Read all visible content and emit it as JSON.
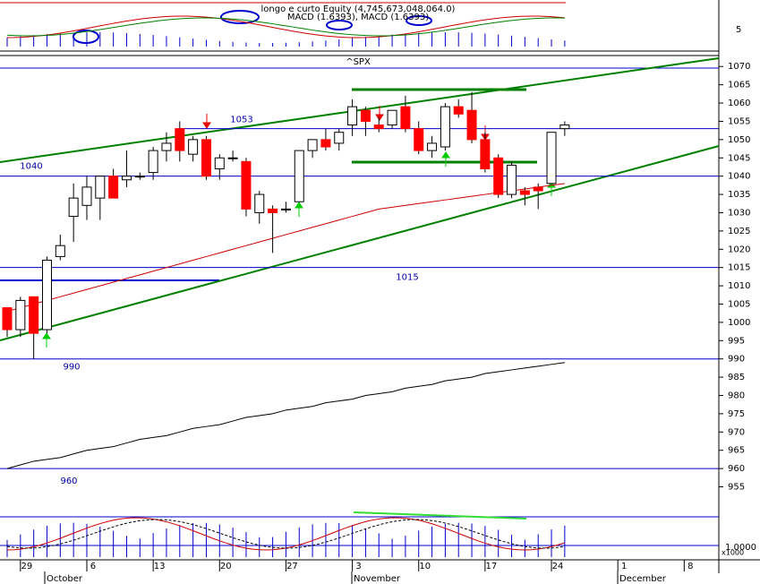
{
  "chart_data": {
    "type": "candlestick",
    "title": "longo e curto Equity (4,745,673,048,064.0)",
    "subtitle": "MACD (1.6393), MACD (1.6393)",
    "symbol": "^SPX",
    "categories": [
      null,
      "29",
      null,
      null,
      null,
      null,
      "6",
      null,
      null,
      null,
      null,
      "13",
      null,
      null,
      null,
      null,
      "20",
      null,
      null,
      null,
      null,
      "27",
      null,
      null,
      null,
      null,
      "3",
      null,
      null,
      null,
      null,
      "10",
      null,
      null,
      null,
      null,
      "17",
      null,
      null,
      null,
      null,
      "24",
      null,
      null,
      null,
      null,
      "1",
      null,
      null,
      null,
      null,
      "8",
      null,
      null
    ],
    "months": [
      "October",
      "November",
      "December"
    ],
    "open": [
      1004,
      998,
      1007,
      998,
      1018,
      1029,
      1032,
      1034,
      1040,
      1039,
      1040,
      1041,
      1047,
      1053,
      1046,
      1050,
      1042,
      1045,
      1044,
      1030,
      1031,
      1031,
      1033,
      1047,
      1050,
      1049,
      1054,
      1058,
      1054,
      1054,
      1059,
      1053,
      1047,
      1048,
      1059,
      1058,
      1050,
      1045,
      1035,
      1036,
      1037,
      1038,
      1053,
      null,
      null,
      null,
      null,
      null,
      null,
      null,
      null,
      null,
      null,
      null
    ],
    "high": [
      1004,
      1007,
      1007,
      1018,
      1024,
      1038,
      1040,
      1040,
      1042,
      1047,
      1041,
      1048,
      1052,
      1055,
      1051,
      1051,
      1046,
      1047,
      1045,
      1036,
      1032,
      1033,
      1047,
      1050,
      1053,
      1053,
      1061,
      1059,
      1056,
      1058,
      1062,
      1055,
      1051,
      1060,
      1061,
      1063,
      1052,
      1046,
      1044,
      1037,
      1038,
      1052,
      1055,
      null,
      null,
      null,
      null,
      null,
      null,
      null,
      null,
      null,
      null,
      null
    ],
    "low": [
      996,
      996,
      990,
      997,
      1017,
      1022,
      1028,
      1028,
      1035,
      1037,
      1039,
      1039,
      1044,
      1044,
      1044,
      1039,
      1039,
      1044,
      1029,
      1027,
      1019,
      1030,
      1033,
      1045,
      1047,
      1047,
      1051,
      1051,
      1052,
      1053,
      1052,
      1046,
      1045,
      1047,
      1056,
      1049,
      1041,
      1034,
      1034,
      1032,
      1031,
      1038,
      1051,
      null,
      null,
      null,
      null,
      null,
      null,
      null,
      null,
      null,
      null,
      null
    ],
    "close": [
      998,
      1006,
      997,
      1017,
      1021,
      1034,
      1037,
      1040,
      1034,
      1040,
      1040,
      1047,
      1049,
      1047,
      1050,
      1040,
      1045,
      1045,
      1031,
      1035,
      1030,
      1031,
      1047,
      1050,
      1048,
      1052,
      1059,
      1055,
      1053,
      1058,
      1053,
      1047,
      1049,
      1059,
      1057,
      1050,
      1042,
      1035,
      1043,
      1035,
      1036,
      1052,
      1054,
      null,
      null,
      null,
      null,
      null,
      null,
      null,
      null,
      null,
      null,
      null
    ],
    "up_color": "#ffffff",
    "down_color": "#ff0000",
    "series": [
      {
        "color": "#cc0000",
        "values": [
          1003,
          1004,
          1005,
          1006,
          1007,
          1008,
          1009,
          1010,
          1011,
          1012,
          1013,
          1014,
          1015,
          1016,
          1017,
          1018,
          1019,
          1020,
          1021,
          1022,
          1023,
          1024,
          1025,
          1026,
          1027,
          1028,
          1029,
          1030,
          1031,
          1031.5,
          1032,
          1032.5,
          1033,
          1033.5,
          1034,
          1034.5,
          1035,
          1035.5,
          1036,
          1036.5,
          1037,
          1037.5,
          1038,
          null,
          null,
          null,
          null,
          null,
          null,
          null,
          null,
          null,
          null,
          null
        ]
      },
      {
        "color": "#000000",
        "values": [
          960,
          961,
          962,
          962.5,
          963,
          964,
          965,
          965.5,
          966,
          967,
          968,
          968.5,
          969,
          970,
          971,
          971.5,
          972,
          973,
          974,
          974.5,
          975,
          976,
          976.5,
          977,
          978,
          978.5,
          979,
          980,
          980.5,
          981,
          982,
          982.5,
          983,
          984,
          984.5,
          985,
          986,
          986.5,
          987,
          987.5,
          988,
          988.5,
          989,
          null,
          null,
          null,
          null,
          null,
          null,
          null,
          null,
          null,
          null,
          null
        ]
      }
    ],
    "levels": [
      1053,
      1040,
      1015,
      990,
      960
    ],
    "level_color": "#0000cc",
    "ylim": [
      949,
      1073
    ],
    "yticks": [
      955,
      960,
      965,
      970,
      975,
      980,
      985,
      990,
      995,
      1000,
      1005,
      1010,
      1015,
      1020,
      1025,
      1030,
      1035,
      1040,
      1045,
      1050,
      1055,
      1060,
      1065,
      1070
    ],
    "macd_tick": "5",
    "stoch_tick": "1.0000",
    "stoch_scale": "x1000"
  }
}
